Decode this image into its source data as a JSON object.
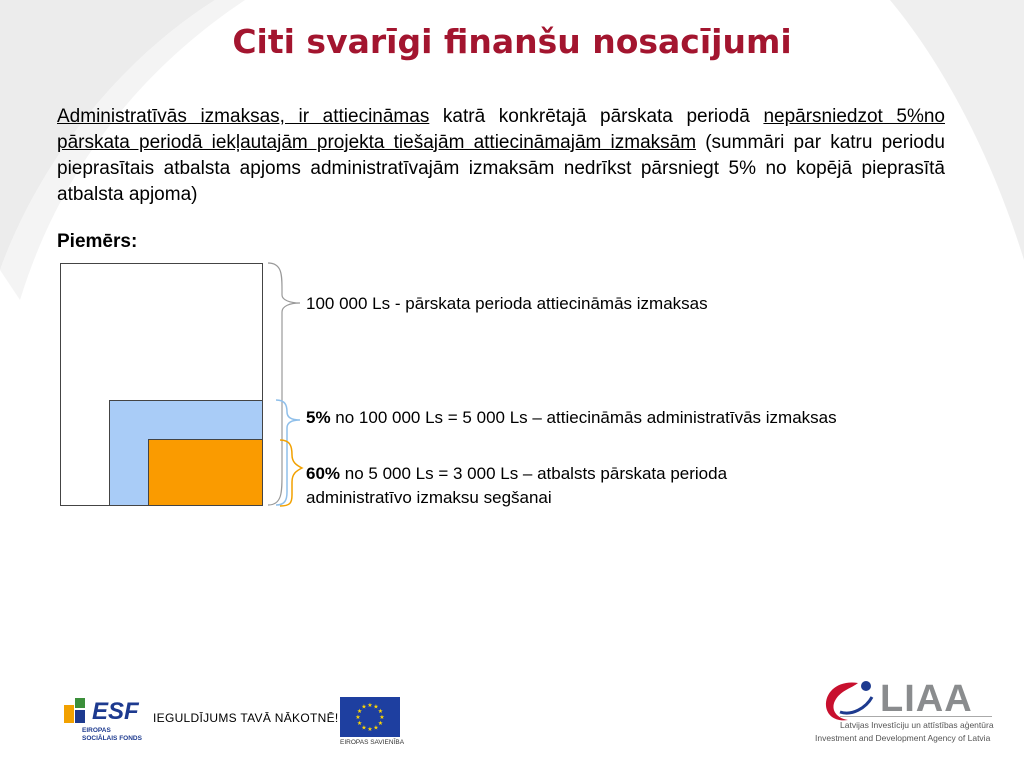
{
  "title": "Citi svarīgi finanšu nosacījumi",
  "paragraph": {
    "underlined_1": "Administratīvās izmaksas, ir attiecināmas",
    "plain_1": " katrā konkrētajā pārskata periodā ",
    "underlined_2": "nepārsniedzot 5%no pārskata periodā iekļautajām projekta tiešajām attiecināmajām izmaksām",
    "plain_2": " (summāri par katru periodu pieprasītais atbalsta apjoms administratīvajām izmaksām nedrīkst pārsniegt 5% no kopējā pieprasītā atbalsta apjoma)"
  },
  "example_heading": "Piemērs:",
  "diagram": {
    "label_total": "100 000 Ls - pārskata perioda attiecināmās izmaksas",
    "label_admin_bold": "5%",
    "label_admin_rest": " no 100 000 Ls = 5 000 Ls – attiecināmās administratīvās izmaksas",
    "label_support_bold": "60%",
    "label_support_rest": " no 5 000 Ls = 3 000 Ls – atbalsts pārskata perioda administratīvo izmaksu segšanai",
    "colors": {
      "total": "#ffffff",
      "admin": "#a9ccf7",
      "support": "#fa9b00",
      "title": "#a3152f"
    }
  },
  "footer": {
    "esf_logo": "ESF",
    "esf_sub": "EIROPAS SOCIĀLAIS FONDS",
    "slogan": "IEGULDĪJUMS TAVĀ NĀKOTNĒ!",
    "eu_sub": "EIROPAS SAVIENĪBA",
    "liaa_logo": "LIAA",
    "liaa_sub_lv": "Latvijas Investīciju un attīstības aģentūra",
    "liaa_sub_en": "Investment and Development Agency of Latvia"
  }
}
